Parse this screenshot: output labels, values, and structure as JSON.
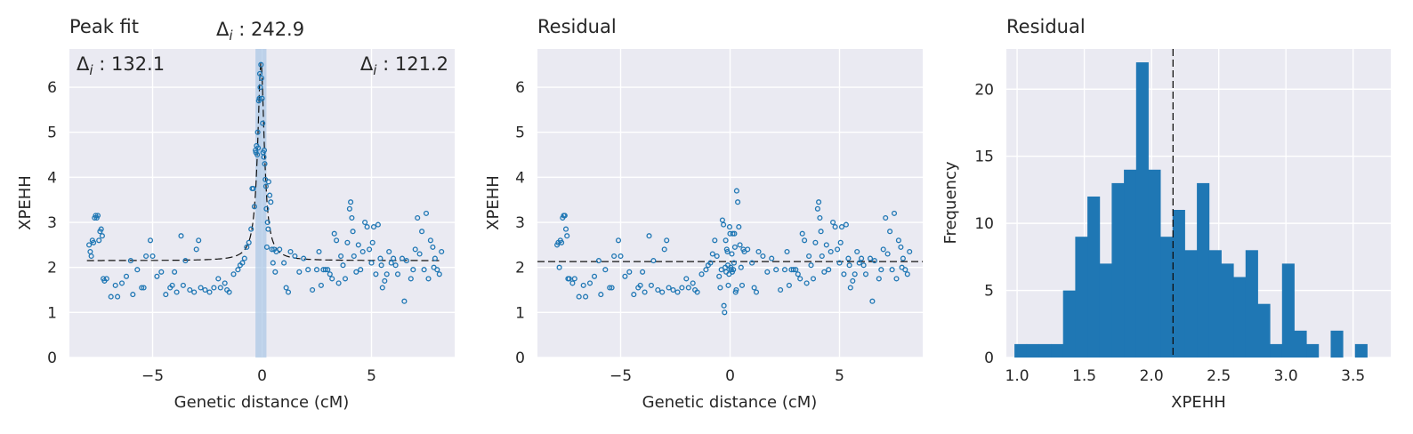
{
  "colors": {
    "points": "#1f77b4",
    "bars": "#1f77b4",
    "highlight": "#a9c6e6",
    "line": "#111111"
  },
  "chart_data": [
    {
      "type": "scatter",
      "title": "Peak fit",
      "xlabel": "Genetic distance (cM)",
      "ylabel": "XPEHH",
      "xlim": [
        -8.8,
        8.8
      ],
      "ylim": [
        0,
        6.85
      ],
      "xticks": [
        -5,
        0,
        5
      ],
      "yticks": [
        0,
        1,
        2,
        3,
        4,
        5,
        6
      ],
      "grid": true,
      "annotations": {
        "center": "Δ",
        "left": "Δ",
        "right": "Δ",
        "center_value": " : 242.9",
        "left_value": " : 132.1",
        "right_value": " : 121.2",
        "sub": "i"
      },
      "highlight_span": [
        -0.3,
        0.2
      ],
      "fit": {
        "baseline": 2.15,
        "peak_x": -0.05,
        "peak_y": 6.55,
        "width": 0.18
      },
      "points": [
        [
          -7.9,
          2.5
        ],
        [
          -7.85,
          2.35
        ],
        [
          -7.8,
          2.25
        ],
        [
          -7.75,
          2.6
        ],
        [
          -7.7,
          2.55
        ],
        [
          -7.65,
          3.1
        ],
        [
          -7.6,
          3.15
        ],
        [
          -7.55,
          3.1
        ],
        [
          -7.5,
          3.15
        ],
        [
          -7.45,
          2.6
        ],
        [
          -7.4,
          2.8
        ],
        [
          -7.35,
          2.85
        ],
        [
          -7.3,
          2.7
        ],
        [
          -7.25,
          1.75
        ],
        [
          -7.2,
          1.7
        ],
        [
          -7.1,
          1.75
        ],
        [
          -6.9,
          1.35
        ],
        [
          -6.7,
          1.6
        ],
        [
          -6.6,
          1.35
        ],
        [
          -6.4,
          1.65
        ],
        [
          -6.2,
          1.8
        ],
        [
          -6.0,
          2.15
        ],
        [
          -5.9,
          1.4
        ],
        [
          -5.7,
          1.95
        ],
        [
          -5.5,
          1.55
        ],
        [
          -5.4,
          1.55
        ],
        [
          -5.3,
          2.25
        ],
        [
          -5.1,
          2.6
        ],
        [
          -5.0,
          2.25
        ],
        [
          -4.8,
          1.8
        ],
        [
          -4.6,
          1.9
        ],
        [
          -4.4,
          1.4
        ],
        [
          -4.2,
          1.55
        ],
        [
          -4.1,
          1.6
        ],
        [
          -4.0,
          1.9
        ],
        [
          -3.9,
          1.45
        ],
        [
          -3.7,
          2.7
        ],
        [
          -3.6,
          1.6
        ],
        [
          -3.5,
          2.15
        ],
        [
          -3.3,
          1.5
        ],
        [
          -3.1,
          1.45
        ],
        [
          -3.0,
          2.4
        ],
        [
          -2.9,
          2.6
        ],
        [
          -2.8,
          1.55
        ],
        [
          -2.6,
          1.5
        ],
        [
          -2.4,
          1.45
        ],
        [
          -2.2,
          1.55
        ],
        [
          -2.0,
          1.75
        ],
        [
          -1.9,
          1.55
        ],
        [
          -1.7,
          1.65
        ],
        [
          -1.6,
          1.5
        ],
        [
          -1.5,
          1.45
        ],
        [
          -1.3,
          1.85
        ],
        [
          -1.1,
          1.95
        ],
        [
          -1.0,
          2.05
        ],
        [
          -0.9,
          2.1
        ],
        [
          -0.8,
          2.2
        ],
        [
          -0.7,
          2.45
        ],
        [
          -0.6,
          2.55
        ],
        [
          -0.5,
          2.85
        ],
        [
          -0.45,
          3.75
        ],
        [
          -0.4,
          3.75
        ],
        [
          -0.35,
          3.35
        ],
        [
          -0.3,
          4.6
        ],
        [
          -0.28,
          4.55
        ],
        [
          -0.25,
          4.7
        ],
        [
          -0.22,
          4.5
        ],
        [
          -0.2,
          5.0
        ],
        [
          -0.18,
          4.65
        ],
        [
          -0.15,
          5.7
        ],
        [
          -0.12,
          5.75
        ],
        [
          -0.1,
          6.3
        ],
        [
          -0.08,
          6.0
        ],
        [
          -0.05,
          6.5
        ],
        [
          -0.02,
          6.2
        ],
        [
          0.0,
          5.75
        ],
        [
          0.03,
          5.2
        ],
        [
          0.05,
          4.55
        ],
        [
          0.08,
          4.45
        ],
        [
          0.1,
          4.6
        ],
        [
          0.12,
          4.3
        ],
        [
          0.15,
          3.95
        ],
        [
          0.18,
          3.8
        ],
        [
          0.2,
          3.3
        ],
        [
          0.22,
          2.45
        ],
        [
          0.25,
          3.0
        ],
        [
          0.28,
          2.85
        ],
        [
          0.3,
          3.9
        ],
        [
          0.35,
          3.6
        ],
        [
          0.4,
          3.45
        ],
        [
          0.45,
          2.4
        ],
        [
          0.5,
          2.1
        ],
        [
          0.55,
          2.4
        ],
        [
          0.6,
          1.9
        ],
        [
          0.65,
          2.35
        ],
        [
          0.8,
          2.4
        ],
        [
          1.0,
          2.1
        ],
        [
          1.1,
          1.55
        ],
        [
          1.2,
          1.45
        ],
        [
          1.3,
          2.35
        ],
        [
          1.5,
          2.25
        ],
        [
          1.7,
          1.9
        ],
        [
          1.9,
          2.2
        ],
        [
          2.1,
          1.95
        ],
        [
          2.3,
          1.5
        ],
        [
          2.5,
          1.95
        ],
        [
          2.6,
          2.35
        ],
        [
          2.7,
          1.6
        ],
        [
          2.8,
          1.95
        ],
        [
          2.9,
          1.95
        ],
        [
          3.0,
          1.95
        ],
        [
          3.1,
          1.85
        ],
        [
          3.2,
          1.75
        ],
        [
          3.3,
          2.75
        ],
        [
          3.4,
          2.6
        ],
        [
          3.5,
          1.65
        ],
        [
          3.6,
          2.25
        ],
        [
          3.7,
          2.05
        ],
        [
          3.8,
          1.75
        ],
        [
          3.9,
          2.55
        ],
        [
          4.0,
          3.3
        ],
        [
          4.05,
          3.45
        ],
        [
          4.1,
          3.1
        ],
        [
          4.15,
          2.8
        ],
        [
          4.2,
          2.25
        ],
        [
          4.3,
          1.9
        ],
        [
          4.4,
          2.5
        ],
        [
          4.5,
          1.95
        ],
        [
          4.6,
          2.35
        ],
        [
          4.7,
          3.0
        ],
        [
          4.8,
          2.9
        ],
        [
          4.9,
          2.4
        ],
        [
          5.0,
          2.1
        ],
        [
          5.05,
          2.55
        ],
        [
          5.1,
          2.9
        ],
        [
          5.2,
          1.85
        ],
        [
          5.3,
          2.95
        ],
        [
          5.4,
          2.2
        ],
        [
          5.45,
          2.05
        ],
        [
          5.5,
          1.55
        ],
        [
          5.6,
          1.7
        ],
        [
          5.7,
          1.85
        ],
        [
          5.8,
          2.35
        ],
        [
          5.9,
          2.1
        ],
        [
          6.0,
          2.2
        ],
        [
          6.1,
          2.05
        ],
        [
          6.2,
          1.85
        ],
        [
          6.4,
          2.2
        ],
        [
          6.5,
          1.25
        ],
        [
          6.6,
          2.15
        ],
        [
          6.8,
          1.75
        ],
        [
          6.9,
          1.95
        ],
        [
          7.0,
          2.4
        ],
        [
          7.1,
          3.1
        ],
        [
          7.2,
          2.3
        ],
        [
          7.3,
          2.8
        ],
        [
          7.4,
          1.95
        ],
        [
          7.5,
          3.2
        ],
        [
          7.6,
          1.75
        ],
        [
          7.7,
          2.6
        ],
        [
          7.8,
          2.45
        ],
        [
          7.85,
          2.0
        ],
        [
          7.9,
          2.2
        ],
        [
          8.0,
          1.95
        ],
        [
          8.1,
          1.85
        ],
        [
          8.2,
          2.35
        ]
      ]
    },
    {
      "type": "scatter",
      "title": "Residual",
      "xlabel": "Genetic distance (cM)",
      "ylabel": "XPEHH",
      "xlim": [
        -8.8,
        8.8
      ],
      "ylim": [
        0,
        6.85
      ],
      "xticks": [
        -5,
        0,
        5
      ],
      "yticks": [
        0,
        1,
        2,
        3,
        4,
        5,
        6
      ],
      "grid": true,
      "hline": 2.13,
      "points": [
        [
          -7.9,
          2.5
        ],
        [
          -7.85,
          2.55
        ],
        [
          -7.8,
          2.0
        ],
        [
          -7.75,
          2.6
        ],
        [
          -7.7,
          2.55
        ],
        [
          -7.65,
          3.1
        ],
        [
          -7.6,
          3.15
        ],
        [
          -7.55,
          3.15
        ],
        [
          -7.5,
          2.85
        ],
        [
          -7.45,
          2.7
        ],
        [
          -7.4,
          1.75
        ],
        [
          -7.35,
          1.75
        ],
        [
          -7.2,
          1.65
        ],
        [
          -7.1,
          1.75
        ],
        [
          -6.9,
          1.35
        ],
        [
          -6.7,
          1.6
        ],
        [
          -6.6,
          1.35
        ],
        [
          -6.4,
          1.65
        ],
        [
          -6.2,
          1.8
        ],
        [
          -6.0,
          2.15
        ],
        [
          -5.9,
          1.4
        ],
        [
          -5.7,
          1.95
        ],
        [
          -5.5,
          1.55
        ],
        [
          -5.4,
          1.55
        ],
        [
          -5.3,
          2.25
        ],
        [
          -5.1,
          2.6
        ],
        [
          -5.0,
          2.25
        ],
        [
          -4.8,
          1.8
        ],
        [
          -4.6,
          1.9
        ],
        [
          -4.4,
          1.4
        ],
        [
          -4.2,
          1.55
        ],
        [
          -4.1,
          1.6
        ],
        [
          -4.0,
          1.9
        ],
        [
          -3.9,
          1.45
        ],
        [
          -3.7,
          2.7
        ],
        [
          -3.6,
          1.6
        ],
        [
          -3.5,
          2.15
        ],
        [
          -3.3,
          1.5
        ],
        [
          -3.1,
          1.45
        ],
        [
          -3.0,
          2.4
        ],
        [
          -2.9,
          2.6
        ],
        [
          -2.8,
          1.55
        ],
        [
          -2.6,
          1.5
        ],
        [
          -2.4,
          1.45
        ],
        [
          -2.2,
          1.55
        ],
        [
          -2.0,
          1.75
        ],
        [
          -1.9,
          1.55
        ],
        [
          -1.7,
          1.65
        ],
        [
          -1.6,
          1.5
        ],
        [
          -1.5,
          1.45
        ],
        [
          -1.3,
          1.85
        ],
        [
          -1.1,
          1.95
        ],
        [
          -1.0,
          2.05
        ],
        [
          -0.9,
          2.1
        ],
        [
          -0.8,
          2.3
        ],
        [
          -0.7,
          2.6
        ],
        [
          -0.6,
          2.25
        ],
        [
          -0.5,
          1.8
        ],
        [
          -0.45,
          1.55
        ],
        [
          -0.4,
          1.95
        ],
        [
          -0.35,
          3.05
        ],
        [
          -0.3,
          2.95
        ],
        [
          -0.28,
          1.15
        ],
        [
          -0.25,
          1.0
        ],
        [
          -0.22,
          2.0
        ],
        [
          -0.2,
          2.6
        ],
        [
          -0.18,
          1.9
        ],
        [
          -0.15,
          2.4
        ],
        [
          -0.12,
          2.35
        ],
        [
          -0.1,
          2.05
        ],
        [
          -0.08,
          1.6
        ],
        [
          -0.05,
          1.85
        ],
        [
          -0.02,
          2.9
        ],
        [
          0.0,
          2.75
        ],
        [
          0.03,
          2.0
        ],
        [
          0.05,
          1.95
        ],
        [
          0.08,
          2.3
        ],
        [
          0.1,
          1.9
        ],
        [
          0.12,
          2.75
        ],
        [
          0.15,
          1.95
        ],
        [
          0.18,
          2.1
        ],
        [
          0.2,
          2.75
        ],
        [
          0.22,
          2.45
        ],
        [
          0.25,
          1.45
        ],
        [
          0.28,
          1.5
        ],
        [
          0.3,
          3.7
        ],
        [
          0.35,
          3.45
        ],
        [
          0.4,
          2.9
        ],
        [
          0.45,
          2.5
        ],
        [
          0.5,
          2.0
        ],
        [
          0.55,
          1.6
        ],
        [
          0.6,
          2.4
        ],
        [
          0.65,
          2.35
        ],
        [
          0.8,
          2.4
        ],
        [
          1.0,
          2.1
        ],
        [
          1.1,
          1.55
        ],
        [
          1.2,
          1.45
        ],
        [
          1.3,
          2.35
        ],
        [
          1.5,
          2.25
        ],
        [
          1.7,
          1.9
        ],
        [
          1.9,
          2.2
        ],
        [
          2.1,
          1.95
        ],
        [
          2.3,
          1.5
        ],
        [
          2.5,
          1.95
        ],
        [
          2.6,
          2.35
        ],
        [
          2.7,
          1.6
        ],
        [
          2.8,
          1.95
        ],
        [
          2.9,
          1.95
        ],
        [
          3.0,
          1.95
        ],
        [
          3.1,
          1.85
        ],
        [
          3.2,
          1.75
        ],
        [
          3.3,
          2.75
        ],
        [
          3.4,
          2.6
        ],
        [
          3.5,
          1.65
        ],
        [
          3.6,
          2.25
        ],
        [
          3.7,
          2.05
        ],
        [
          3.8,
          1.75
        ],
        [
          3.9,
          2.55
        ],
        [
          4.0,
          3.3
        ],
        [
          4.05,
          3.45
        ],
        [
          4.1,
          3.1
        ],
        [
          4.15,
          2.8
        ],
        [
          4.2,
          2.25
        ],
        [
          4.3,
          1.9
        ],
        [
          4.4,
          2.5
        ],
        [
          4.5,
          1.95
        ],
        [
          4.6,
          2.35
        ],
        [
          4.7,
          3.0
        ],
        [
          4.8,
          2.9
        ],
        [
          4.9,
          2.4
        ],
        [
          5.0,
          2.1
        ],
        [
          5.05,
          2.55
        ],
        [
          5.1,
          2.9
        ],
        [
          5.2,
          1.85
        ],
        [
          5.3,
          2.95
        ],
        [
          5.4,
          2.2
        ],
        [
          5.45,
          2.05
        ],
        [
          5.5,
          1.55
        ],
        [
          5.6,
          1.7
        ],
        [
          5.7,
          1.85
        ],
        [
          5.8,
          2.35
        ],
        [
          5.9,
          2.1
        ],
        [
          6.0,
          2.2
        ],
        [
          6.1,
          2.05
        ],
        [
          6.2,
          1.85
        ],
        [
          6.4,
          2.2
        ],
        [
          6.5,
          1.25
        ],
        [
          6.6,
          2.15
        ],
        [
          6.8,
          1.75
        ],
        [
          6.9,
          1.95
        ],
        [
          7.0,
          2.4
        ],
        [
          7.1,
          3.1
        ],
        [
          7.2,
          2.3
        ],
        [
          7.3,
          2.8
        ],
        [
          7.4,
          1.95
        ],
        [
          7.5,
          3.2
        ],
        [
          7.6,
          1.75
        ],
        [
          7.7,
          2.6
        ],
        [
          7.8,
          2.45
        ],
        [
          7.85,
          2.0
        ],
        [
          7.9,
          2.2
        ],
        [
          8.0,
          1.95
        ],
        [
          8.1,
          1.85
        ],
        [
          8.2,
          2.35
        ]
      ]
    },
    {
      "type": "bar",
      "title": "Residual",
      "xlabel": "XPEHH",
      "ylabel": "Frequency",
      "xlim": [
        0.92,
        3.78
      ],
      "ylim": [
        0,
        23
      ],
      "xticks": [
        1.0,
        1.5,
        2.0,
        2.5,
        3.0,
        3.5
      ],
      "yticks": [
        0,
        5,
        10,
        15,
        20
      ],
      "xtick_labels": [
        "1.0",
        "1.5",
        "2.0",
        "2.5",
        "3.0",
        "3.5"
      ],
      "grid": true,
      "vline": 2.16,
      "bin_start": 0.98,
      "bin_width": 0.0905,
      "values": [
        1,
        1,
        1,
        1,
        5,
        9,
        12,
        7,
        13,
        14,
        22,
        14,
        9,
        11,
        8,
        13,
        8,
        7,
        6,
        8,
        4,
        1,
        7,
        2,
        1,
        0,
        2,
        0,
        1
      ]
    }
  ]
}
